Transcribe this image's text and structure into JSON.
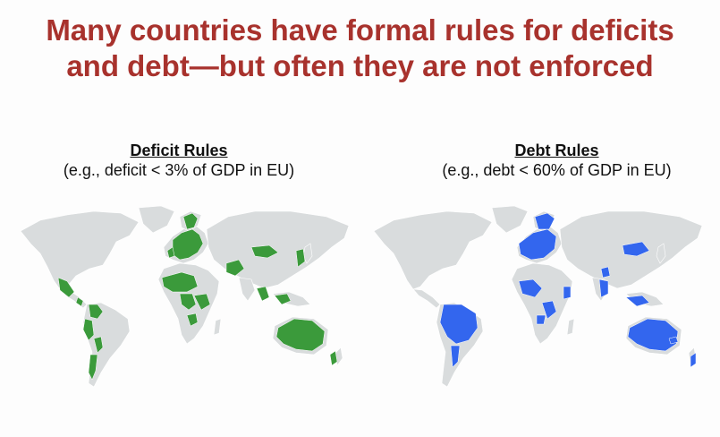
{
  "title": {
    "line1": "Many countries have formal rules for deficits",
    "line2": "and debt—but often they are not enforced"
  },
  "panels": [
    {
      "heading": "Deficit Rules",
      "subheading": "(e.g., deficit < 3% of GDP in EU)",
      "highlight_color": "#3b9a3b"
    },
    {
      "heading": "Debt Rules",
      "subheading": "(e.g., debt < 60% of GDP in EU)",
      "highlight_color": "#3366ee"
    }
  ],
  "land_color": "#d9dcdd",
  "border_color": "#ffffff"
}
